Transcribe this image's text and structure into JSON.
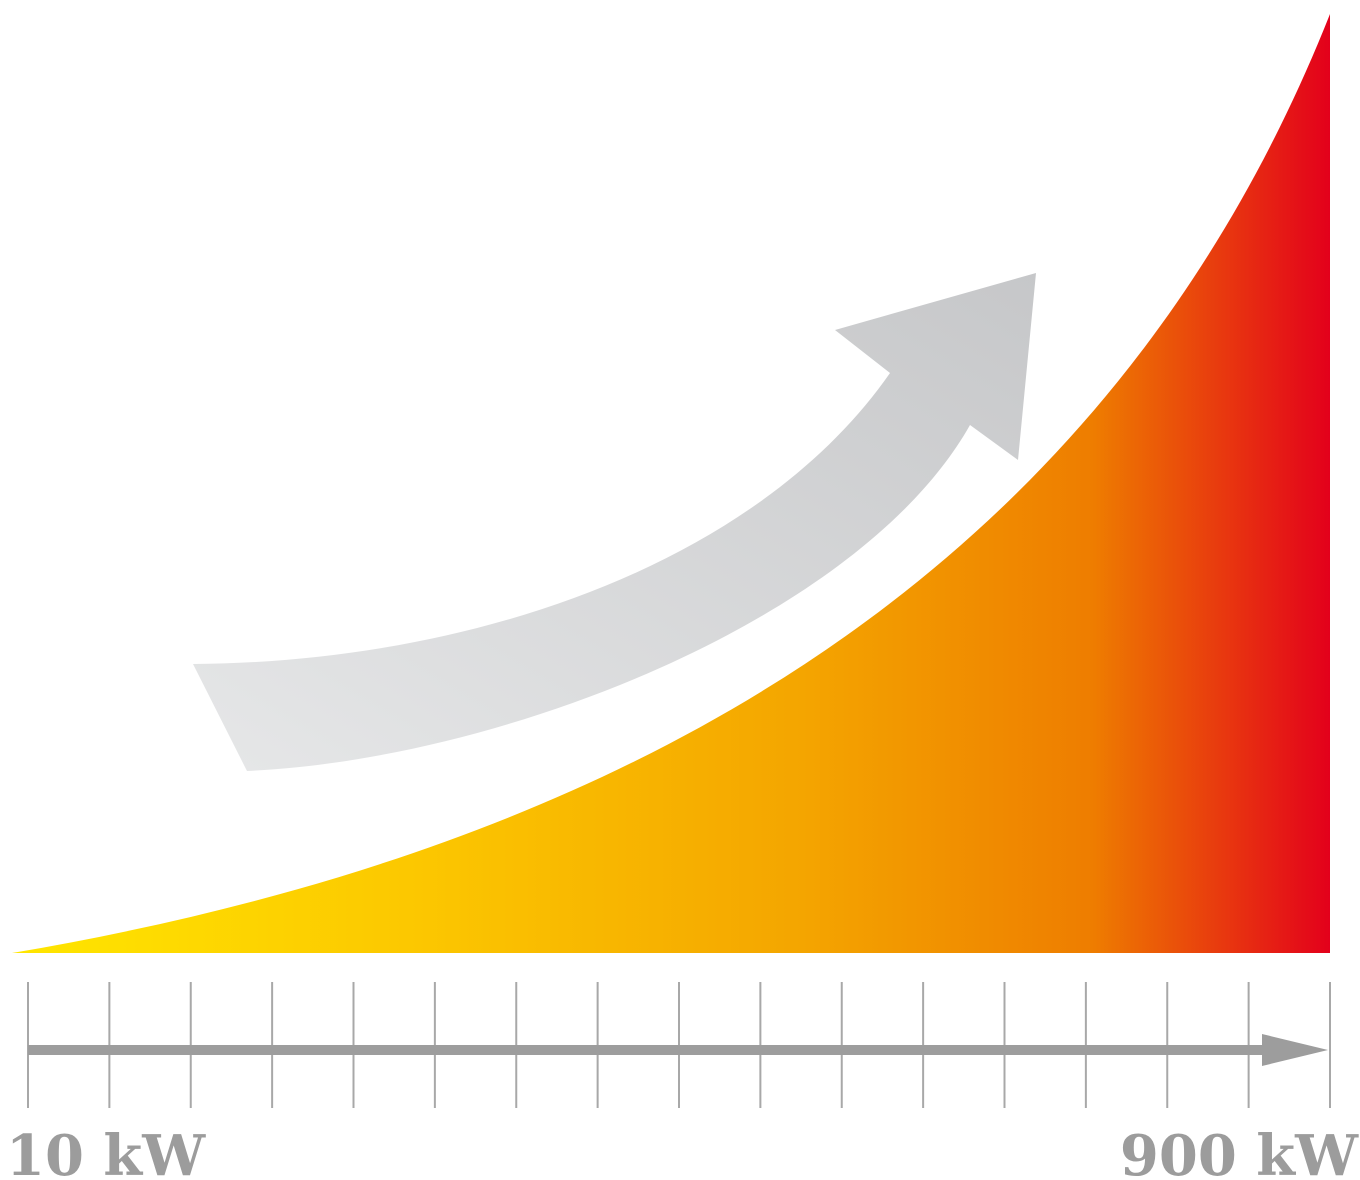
{
  "scale": {
    "start_label": "10 kW",
    "end_label": "900 kW",
    "tick_count": 17
  },
  "colors": {
    "gradient_start": "#ffe600",
    "gradient_mid1": "#fcc800",
    "gradient_mid2": "#f4a500",
    "gradient_mid3": "#ee7d00",
    "gradient_end": "#e3001b",
    "arrow_light": "#e6e7e8",
    "arrow_dark": "#c6c7c9",
    "axis_gray": "#9d9d9d",
    "tick_gray": "#a8a8a8",
    "label_gray": "#9c9c9c"
  },
  "icons": {
    "growth_arrow": "curved-up-arrow-icon",
    "axis_arrow": "right-arrow-icon"
  }
}
